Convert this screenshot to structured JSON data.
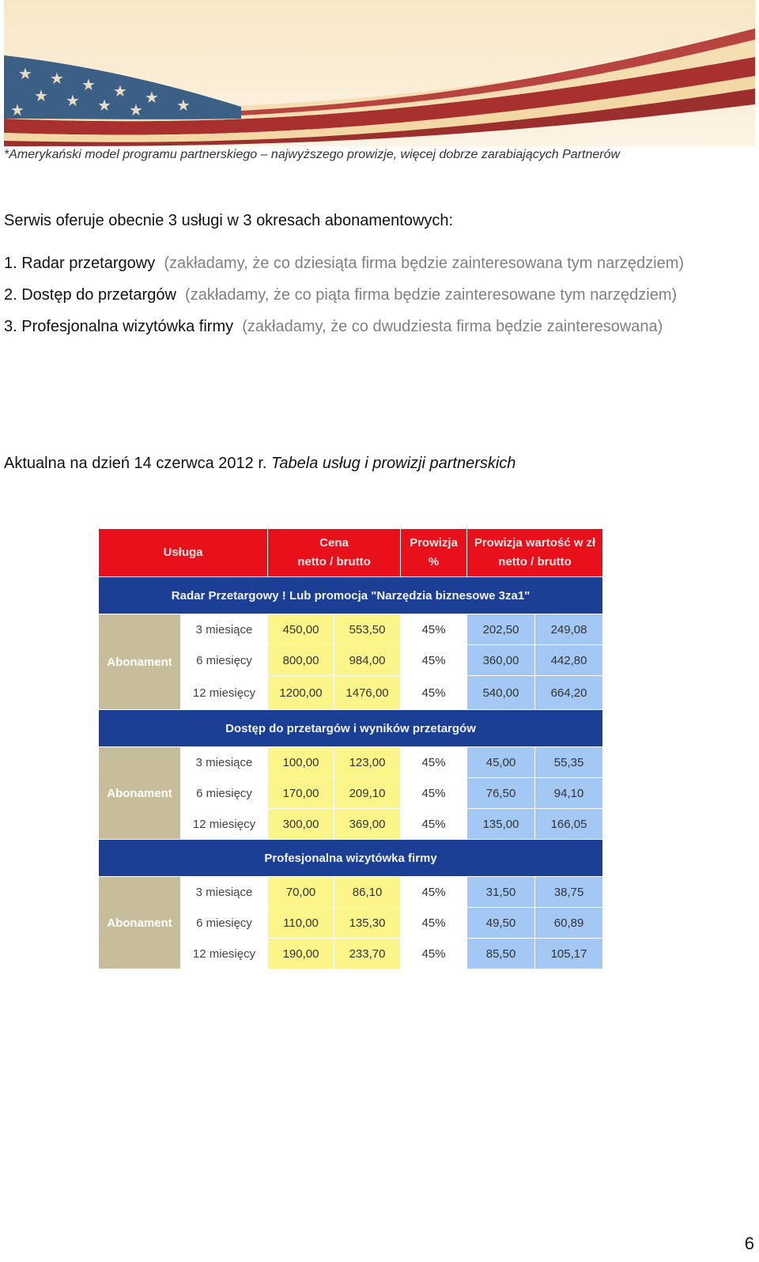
{
  "banner": {
    "icon": "us-flag-icon",
    "colors": {
      "field": "#3c5f86",
      "red": "#a8302f",
      "cream": "#f3d7a4"
    }
  },
  "caption": "*Amerykański model programu partnerskiego – najwyższego prowizje, więcej dobrze zarabiających Partnerów",
  "intro": "Serwis oferuje obecnie 3 usługi w 3 okresach abonamentowych:",
  "services": [
    {
      "name": "1. Radar przetargowy",
      "note": "(zakładamy, że co dziesiąta firma będzie zainteresowana tym narzędziem)"
    },
    {
      "name": "2. Dostęp do przetargów",
      "note": "(zakładamy, że co piąta firma będzie zainteresowane tym narzędziem)"
    },
    {
      "name": "3. Profesjonalna wizytówka firmy",
      "note": "(zakładamy, że co dwudziesta firma będzie zainteresowana)"
    }
  ],
  "date_line": {
    "prefix": "Aktualna na dzień 14 czerwca 2012 r.",
    "title": "Tabela usług i prowizji partnerskich"
  },
  "table": {
    "headers": {
      "service": "Usługa",
      "price_l1": "Cena",
      "price_l2": "netto / brutto",
      "commission_l1": "Prowizja",
      "commission_l2": "%",
      "value_l1": "Prowizja wartość w zł",
      "value_l2": "netto / brutto"
    },
    "sections": [
      {
        "title": "Radar Przetargowy ! Lub promocja \"Narzędzia biznesowe 3za1\"",
        "label": "Abonament",
        "rows": [
          {
            "period": "3 miesiące",
            "net": "450,00",
            "gross": "553,50",
            "pct": "45%",
            "c_net": "202,50",
            "c_gross": "249,08"
          },
          {
            "period": "6 miesięcy",
            "net": "800,00",
            "gross": "984,00",
            "pct": "45%",
            "c_net": "360,00",
            "c_gross": "442,80"
          },
          {
            "period": "12 miesięcy",
            "net": "1200,00",
            "gross": "1476,00",
            "pct": "45%",
            "c_net": "540,00",
            "c_gross": "664,20"
          }
        ]
      },
      {
        "title": "Dostęp do przetargów i wyników przetargów",
        "label": "Abonament",
        "rows": [
          {
            "period": "3 miesiące",
            "net": "100,00",
            "gross": "123,00",
            "pct": "45%",
            "c_net": "45,00",
            "c_gross": "55,35"
          },
          {
            "period": "6 miesięcy",
            "net": "170,00",
            "gross": "209,10",
            "pct": "45%",
            "c_net": "76,50",
            "c_gross": "94,10"
          },
          {
            "period": "12 miesięcy",
            "net": "300,00",
            "gross": "369,00",
            "pct": "45%",
            "c_net": "135,00",
            "c_gross": "166,05"
          }
        ]
      },
      {
        "title": "Profesjonalna wizytówka firmy",
        "label": "Abonament",
        "rows": [
          {
            "period": "3 miesiące",
            "net": "70,00",
            "gross": "86,10",
            "pct": "45%",
            "c_net": "31,50",
            "c_gross": "38,75"
          },
          {
            "period": "6 miesięcy",
            "net": "110,00",
            "gross": "135,30",
            "pct": "45%",
            "c_net": "49,50",
            "c_gross": "60,89"
          },
          {
            "period": "12 miesięcy",
            "net": "190,00",
            "gross": "233,70",
            "pct": "45%",
            "c_net": "85,50",
            "c_gross": "105,17"
          }
        ]
      }
    ]
  },
  "page_number": "6"
}
